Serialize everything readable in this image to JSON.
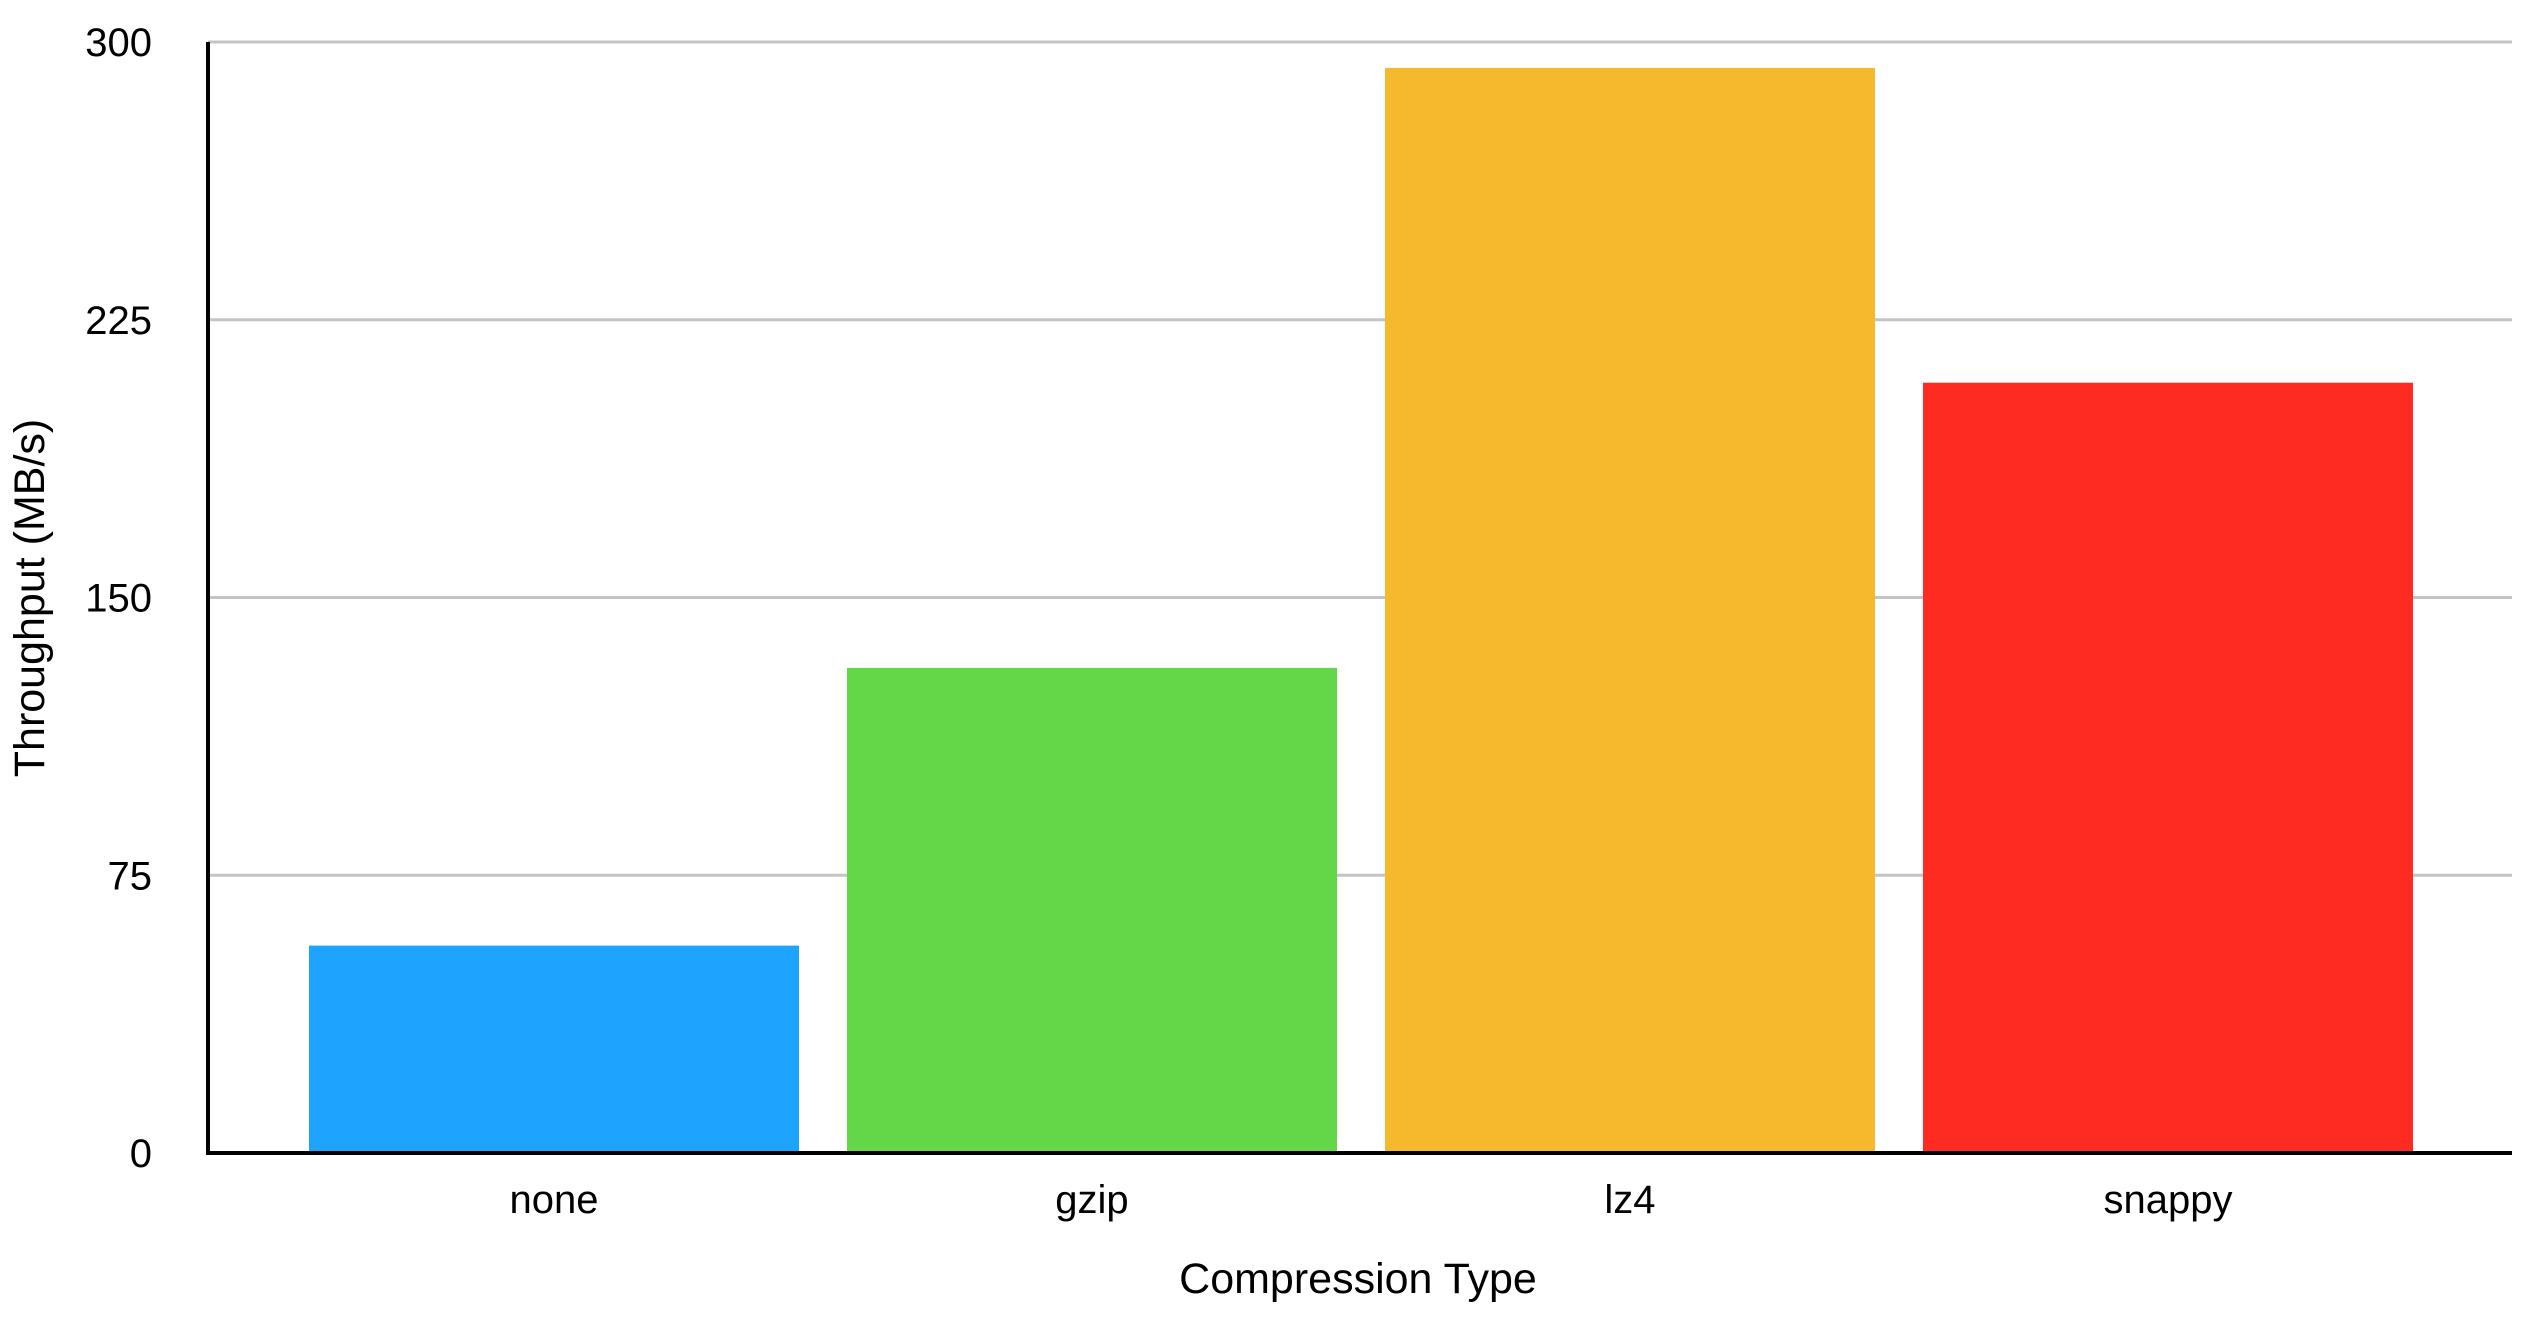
{
  "chart_data": {
    "type": "bar",
    "categories": [
      "none",
      "gzip",
      "lz4",
      "snappy"
    ],
    "values": [
      56,
      131,
      293,
      208
    ],
    "colors": [
      "#1ea4fc",
      "#63d747",
      "#f6b92d",
      "#fd2b21"
    ],
    "title": "",
    "xlabel": "Compression Type",
    "ylabel": "Throughput (MB/s)",
    "ylim": [
      0,
      300
    ],
    "yticks": [
      0,
      75,
      150,
      225,
      300
    ],
    "grid": true,
    "legend": "none"
  }
}
